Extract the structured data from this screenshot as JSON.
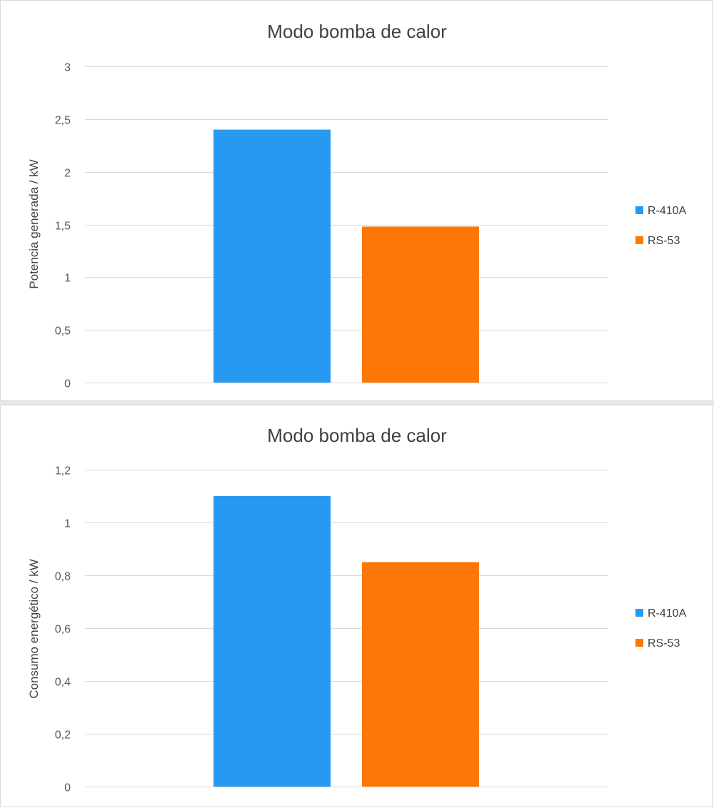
{
  "chart_data": [
    {
      "type": "bar",
      "title": "Modo bomba de calor",
      "xlabel": "",
      "ylabel": "Potencia generada / kW",
      "ylim": [
        0,
        3
      ],
      "ticks": [
        "0",
        "0,5",
        "1",
        "1,5",
        "2",
        "2,5",
        "3"
      ],
      "tick_values": [
        0,
        0.5,
        1,
        1.5,
        2,
        2.5,
        3
      ],
      "grid": true,
      "legend_position": "right",
      "series": [
        {
          "name": "R-410A",
          "value": 2.4,
          "color": "#2899f0"
        },
        {
          "name": "RS-53",
          "value": 1.48,
          "color": "#fd7706"
        }
      ]
    },
    {
      "type": "bar",
      "title": "Modo bomba de calor",
      "xlabel": "",
      "ylabel": "Consumo energético / kW",
      "ylim": [
        0,
        1.2
      ],
      "ticks": [
        "0",
        "0,2",
        "0,4",
        "0,6",
        "0,8",
        "1",
        "1,2"
      ],
      "tick_values": [
        0,
        0.2,
        0.4,
        0.6,
        0.8,
        1,
        1.2
      ],
      "grid": true,
      "legend_position": "right",
      "series": [
        {
          "name": "R-410A",
          "value": 1.1,
          "color": "#2899f0"
        },
        {
          "name": "RS-53",
          "value": 0.85,
          "color": "#fd7706"
        }
      ]
    }
  ]
}
